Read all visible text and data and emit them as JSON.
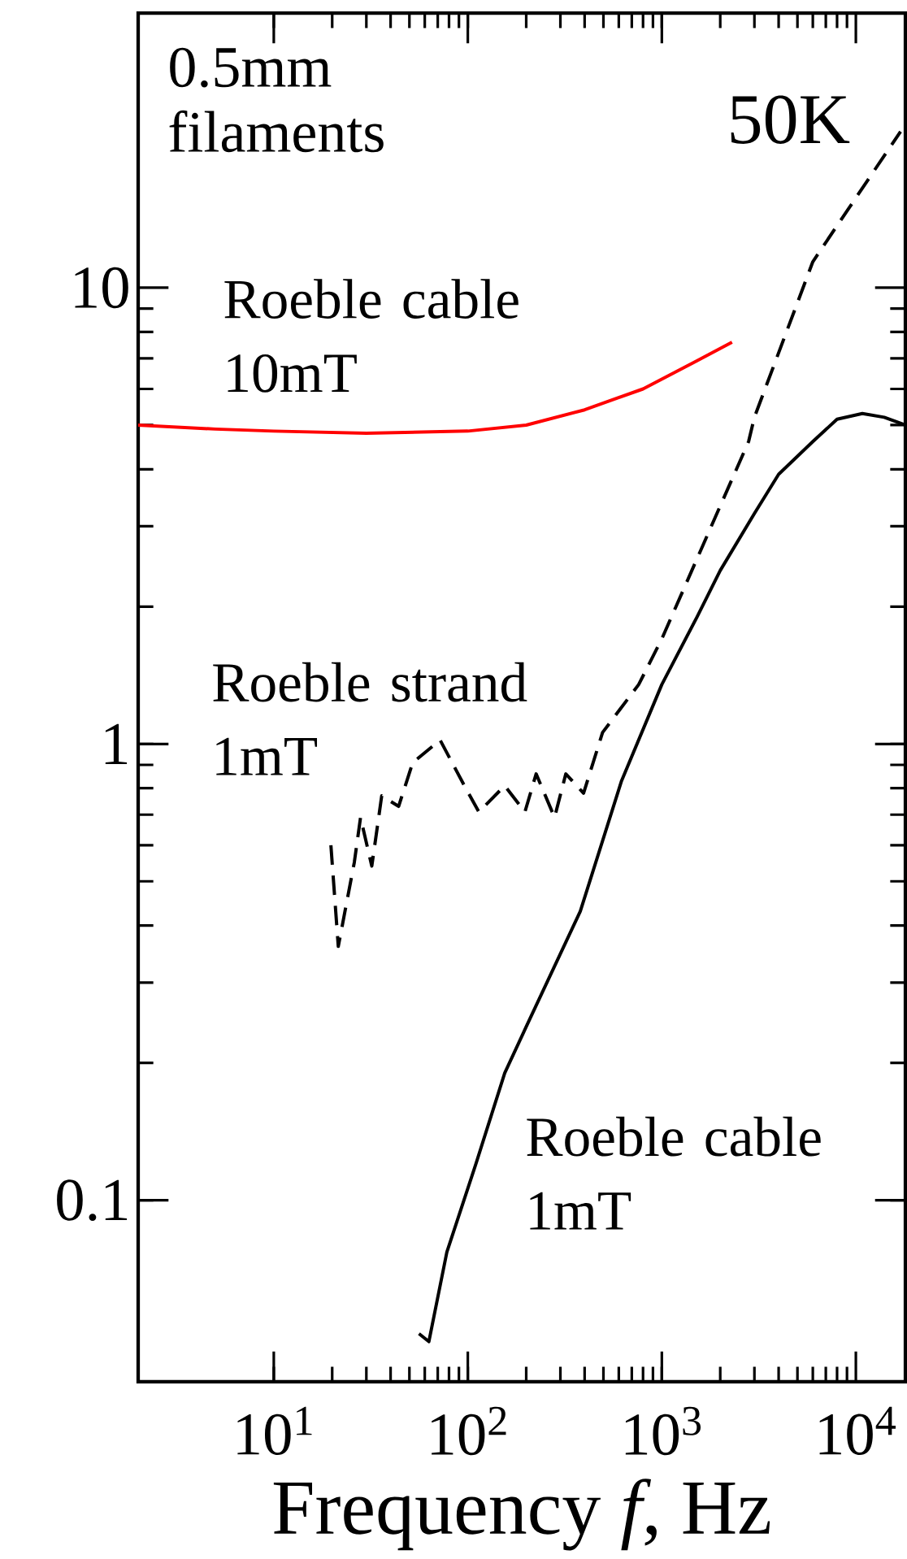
{
  "chart_data": {
    "type": "line",
    "xlabel": "Frequency *f*, Hz",
    "log": "xy",
    "marker": "none",
    "xlim": [
      2,
      18000
    ],
    "ylim": [
      0.04,
      40
    ],
    "xticks": [
      {
        "value": 10,
        "label": "10$^{1}$"
      },
      {
        "value": 100,
        "label": "10$^{2}$"
      },
      {
        "value": 1000,
        "label": "10$^{3}$"
      },
      {
        "value": 10000,
        "label": "10$^{4}$"
      }
    ],
    "yticks": [
      0.1,
      1,
      10
    ],
    "annotations": [
      "0.5mm filaments",
      "50K",
      "Roeble cable 10mT",
      "Roeble strand 1mT",
      "Roeble cable 1mT"
    ],
    "series": [
      {
        "color": "#ff0000",
        "line_style": "solid",
        "x": [
          2,
          5,
          10,
          30,
          100,
          200,
          400,
          800,
          1500,
          2300
        ],
        "values": [
          5.0,
          4.9,
          4.85,
          4.8,
          4.85,
          5.0,
          5.4,
          6.0,
          6.9,
          7.6
        ]
      },
      {
        "color": "#000000",
        "line_style": "dashed",
        "x": [
          19.7,
          21.5,
          26,
          28,
          32,
          36,
          44,
          52,
          72,
          96,
          114,
          155,
          197,
          225,
          280,
          320,
          395,
          495,
          760,
          1000,
          1520,
          2800,
          3000,
          6000,
          17000
        ],
        "values": [
          0.6,
          0.36,
          0.55,
          0.69,
          0.54,
          0.77,
          0.73,
          0.91,
          1.02,
          0.81,
          0.71,
          0.81,
          0.71,
          0.86,
          0.69,
          0.86,
          0.78,
          1.06,
          1.35,
          1.7,
          2.55,
          4.6,
          5.2,
          11.4,
          22
        ]
      },
      {
        "color": "#000000",
        "line_style": "solid",
        "x": [
          56,
          63,
          78,
          110,
          155,
          200,
          380,
          620,
          1000,
          1520,
          2000,
          3000,
          4000,
          6000,
          8000,
          10800,
          14000,
          18000
        ],
        "values": [
          0.051,
          0.049,
          0.077,
          0.12,
          0.19,
          0.24,
          0.43,
          0.83,
          1.35,
          1.9,
          2.4,
          3.2,
          3.9,
          4.6,
          5.15,
          5.3,
          5.2,
          5.0
        ]
      }
    ]
  }
}
